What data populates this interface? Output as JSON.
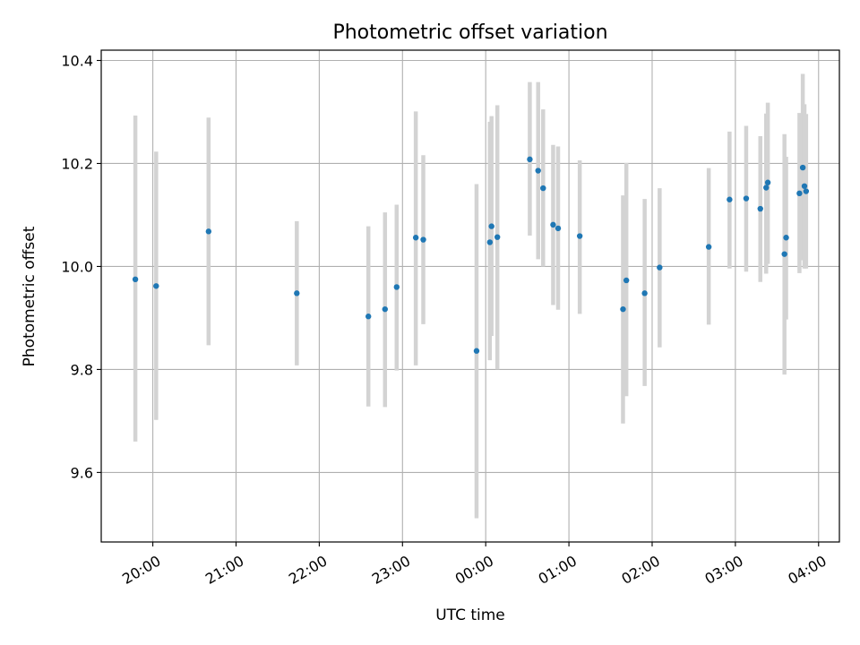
{
  "chart_data": {
    "type": "scatter",
    "title": "Photometric offset variation",
    "xlabel": "UTC time",
    "ylabel": "Photometric offset",
    "x_unit": "hours (UTC, continuing past midnight)",
    "xlim": [
      19.38,
      28.25
    ],
    "ylim": [
      9.465,
      10.42
    ],
    "grid": true,
    "marker_color": "#1f77b4",
    "errorbar_color": "#d3d3d3",
    "y_ticks": [
      9.6,
      9.8,
      10.0,
      10.2,
      10.4
    ],
    "y_tick_labels": [
      "9.6",
      "9.8",
      "10.0",
      "10.2",
      "10.4"
    ],
    "x_ticks": [
      20,
      21,
      22,
      23,
      24,
      25,
      26,
      27,
      28
    ],
    "x_tick_labels": [
      "20:00",
      "21:00",
      "22:00",
      "23:00",
      "00:00",
      "01:00",
      "02:00",
      "03:00",
      "04:00"
    ],
    "points": [
      {
        "x": 19.79,
        "y": 9.975,
        "lo": 9.66,
        "hi": 10.293
      },
      {
        "x": 20.04,
        "y": 9.962,
        "lo": 9.702,
        "hi": 10.223
      },
      {
        "x": 20.67,
        "y": 10.068,
        "lo": 9.847,
        "hi": 10.289
      },
      {
        "x": 21.73,
        "y": 9.948,
        "lo": 9.808,
        "hi": 10.088
      },
      {
        "x": 22.59,
        "y": 9.903,
        "lo": 9.728,
        "hi": 10.078
      },
      {
        "x": 22.79,
        "y": 9.917,
        "lo": 9.727,
        "hi": 10.105
      },
      {
        "x": 22.93,
        "y": 9.96,
        "lo": 9.798,
        "hi": 10.12
      },
      {
        "x": 23.16,
        "y": 10.056,
        "lo": 9.808,
        "hi": 10.301
      },
      {
        "x": 23.25,
        "y": 10.052,
        "lo": 9.888,
        "hi": 10.216
      },
      {
        "x": 23.89,
        "y": 9.836,
        "lo": 9.511,
        "hi": 10.16
      },
      {
        "x": 24.05,
        "y": 10.047,
        "lo": 9.818,
        "hi": 10.281
      },
      {
        "x": 24.07,
        "y": 10.078,
        "lo": 9.865,
        "hi": 10.292
      },
      {
        "x": 24.14,
        "y": 10.057,
        "lo": 9.8,
        "hi": 10.313
      },
      {
        "x": 24.53,
        "y": 10.208,
        "lo": 10.06,
        "hi": 10.358
      },
      {
        "x": 24.63,
        "y": 10.186,
        "lo": 10.014,
        "hi": 10.358
      },
      {
        "x": 24.69,
        "y": 10.152,
        "lo": 10.0,
        "hi": 10.305
      },
      {
        "x": 24.81,
        "y": 10.081,
        "lo": 9.925,
        "hi": 10.236
      },
      {
        "x": 24.87,
        "y": 10.074,
        "lo": 9.916,
        "hi": 10.233
      },
      {
        "x": 25.13,
        "y": 10.059,
        "lo": 9.908,
        "hi": 10.206
      },
      {
        "x": 25.65,
        "y": 9.917,
        "lo": 9.695,
        "hi": 10.138
      },
      {
        "x": 25.69,
        "y": 9.973,
        "lo": 9.748,
        "hi": 10.201
      },
      {
        "x": 25.91,
        "y": 9.948,
        "lo": 9.768,
        "hi": 10.131
      },
      {
        "x": 26.09,
        "y": 9.998,
        "lo": 9.843,
        "hi": 10.152
      },
      {
        "x": 26.68,
        "y": 10.038,
        "lo": 9.887,
        "hi": 10.191
      },
      {
        "x": 26.93,
        "y": 10.13,
        "lo": 9.996,
        "hi": 10.262
      },
      {
        "x": 27.13,
        "y": 10.132,
        "lo": 9.99,
        "hi": 10.273
      },
      {
        "x": 27.3,
        "y": 10.112,
        "lo": 9.97,
        "hi": 10.253
      },
      {
        "x": 27.37,
        "y": 10.153,
        "lo": 9.986,
        "hi": 10.297
      },
      {
        "x": 27.39,
        "y": 10.163,
        "lo": 10.005,
        "hi": 10.318
      },
      {
        "x": 27.59,
        "y": 10.024,
        "lo": 9.79,
        "hi": 10.257
      },
      {
        "x": 27.61,
        "y": 10.056,
        "lo": 9.897,
        "hi": 10.213
      },
      {
        "x": 27.77,
        "y": 10.142,
        "lo": 9.987,
        "hi": 10.298
      },
      {
        "x": 27.81,
        "y": 10.192,
        "lo": 10.012,
        "hi": 10.374
      },
      {
        "x": 27.83,
        "y": 10.156,
        "lo": 9.996,
        "hi": 10.315
      },
      {
        "x": 27.85,
        "y": 10.146,
        "lo": 9.996,
        "hi": 10.296
      }
    ]
  }
}
